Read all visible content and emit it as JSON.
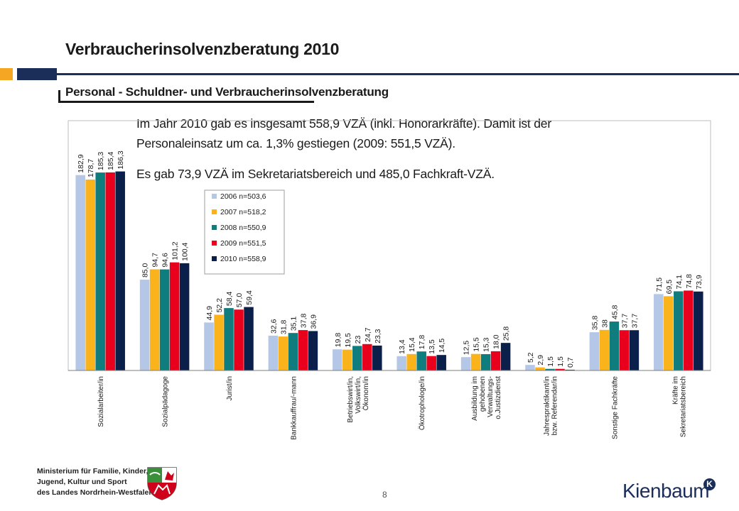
{
  "page": {
    "title": "Verbraucherinsolvenzberatung 2010",
    "subtitle": "Personal - Schuldner- und Verbraucherinsolvenzberatung",
    "paragraphs": [
      "Im Jahr 2010 gab es insgesamt 558,9 VZÄ (inkl. Honorarkräfte). Damit ist der",
      "Personaleinsatz um ca. 1,3% gestiegen (2009: 551,5 VZÄ).",
      "Es gab 73,9 VZÄ im Sekretariatsbereich und 485,0 Fachkraft-VZÄ."
    ],
    "page_number": "8",
    "footer_lines": [
      "Ministerium für Familie, Kinder,",
      "Jugend, Kultur und Sport",
      "des Landes Nordrhein-Westfalen"
    ],
    "brand": "Kienbaum",
    "brand_badge": "K",
    "colors": {
      "orange": "#f5a623",
      "navy": "#1b2e5a"
    }
  },
  "chart_data": {
    "type": "bar",
    "title": "",
    "xlabel": "",
    "ylabel": "",
    "ylim": [
      0,
      190
    ],
    "grid": false,
    "legend_position": "inside-center",
    "categories": [
      [
        "Sozialarbeiter/in"
      ],
      [
        "Sozialpädagoge"
      ],
      [
        "Jurist/in"
      ],
      [
        "Bankkauffrau/-mann"
      ],
      [
        "Betriebswirt/in,",
        "Volkswirt/in,",
        "Ökonom/in"
      ],
      [
        "Ökotrophologe/in"
      ],
      [
        "Ausbildung im",
        "gehobenen",
        "Verwaltungs-",
        "o.Justizdienst"
      ],
      [
        "Jahrespraktikant/in",
        "bzw. Referendar/in"
      ],
      [
        "Sonstige Fachkräfte"
      ],
      [
        "Kräfte im",
        "Sekretariatsbereich"
      ]
    ],
    "series": [
      {
        "name": "2006 n=503,6",
        "color": "#b4c7e7",
        "values": [
          182.9,
          85.0,
          44.9,
          32.6,
          19.8,
          13.4,
          12.5,
          5.2,
          35.8,
          71.5
        ],
        "labels": [
          "182,9",
          "85,0",
          "44,9",
          "32,6",
          "19,8",
          "13,4",
          "12,5",
          "5,2",
          "35,8",
          "71,5"
        ]
      },
      {
        "name": "2007 n=518,2",
        "color": "#fbb31c",
        "values": [
          178.7,
          94.7,
          52.2,
          31.8,
          19.5,
          15.4,
          15.5,
          2.9,
          38,
          69.5
        ],
        "labels": [
          "178,7",
          "94,7",
          "52,2",
          "31,8",
          "19,5",
          "15,4",
          "15,5",
          "2,9",
          "38",
          "69,5"
        ]
      },
      {
        "name": "2008 n=550,9",
        "color": "#0f7c7e",
        "values": [
          185.3,
          94.6,
          58.4,
          35.1,
          23,
          17.8,
          15.3,
          1.5,
          45.8,
          74.1
        ],
        "labels": [
          "185,3",
          "94,6",
          "58,4",
          "35,1",
          "23",
          "17,8",
          "15,3",
          "1,5",
          "45,8",
          "74,1"
        ]
      },
      {
        "name": "2009 n=551,5",
        "color": "#e8001c",
        "values": [
          185.4,
          101.2,
          57.0,
          37.8,
          24.7,
          13.5,
          18.0,
          1.5,
          37.7,
          74.8
        ],
        "labels": [
          "185,4",
          "101,2",
          "57,0",
          "37,8",
          "24,7",
          "13,5",
          "18,0",
          "1,5",
          "37,7",
          "74,8"
        ]
      },
      {
        "name": "2010 n=558,9",
        "color": "#0b1f4b",
        "values": [
          186.3,
          100.4,
          59.4,
          36.9,
          23.3,
          14.5,
          25.8,
          0.7,
          37.7,
          73.9
        ],
        "labels": [
          "186,3",
          "100,4",
          "59,4",
          "36,9",
          "23,3",
          "14,5",
          "25,8",
          "0,7",
          "37,7",
          "73,9"
        ]
      }
    ]
  }
}
